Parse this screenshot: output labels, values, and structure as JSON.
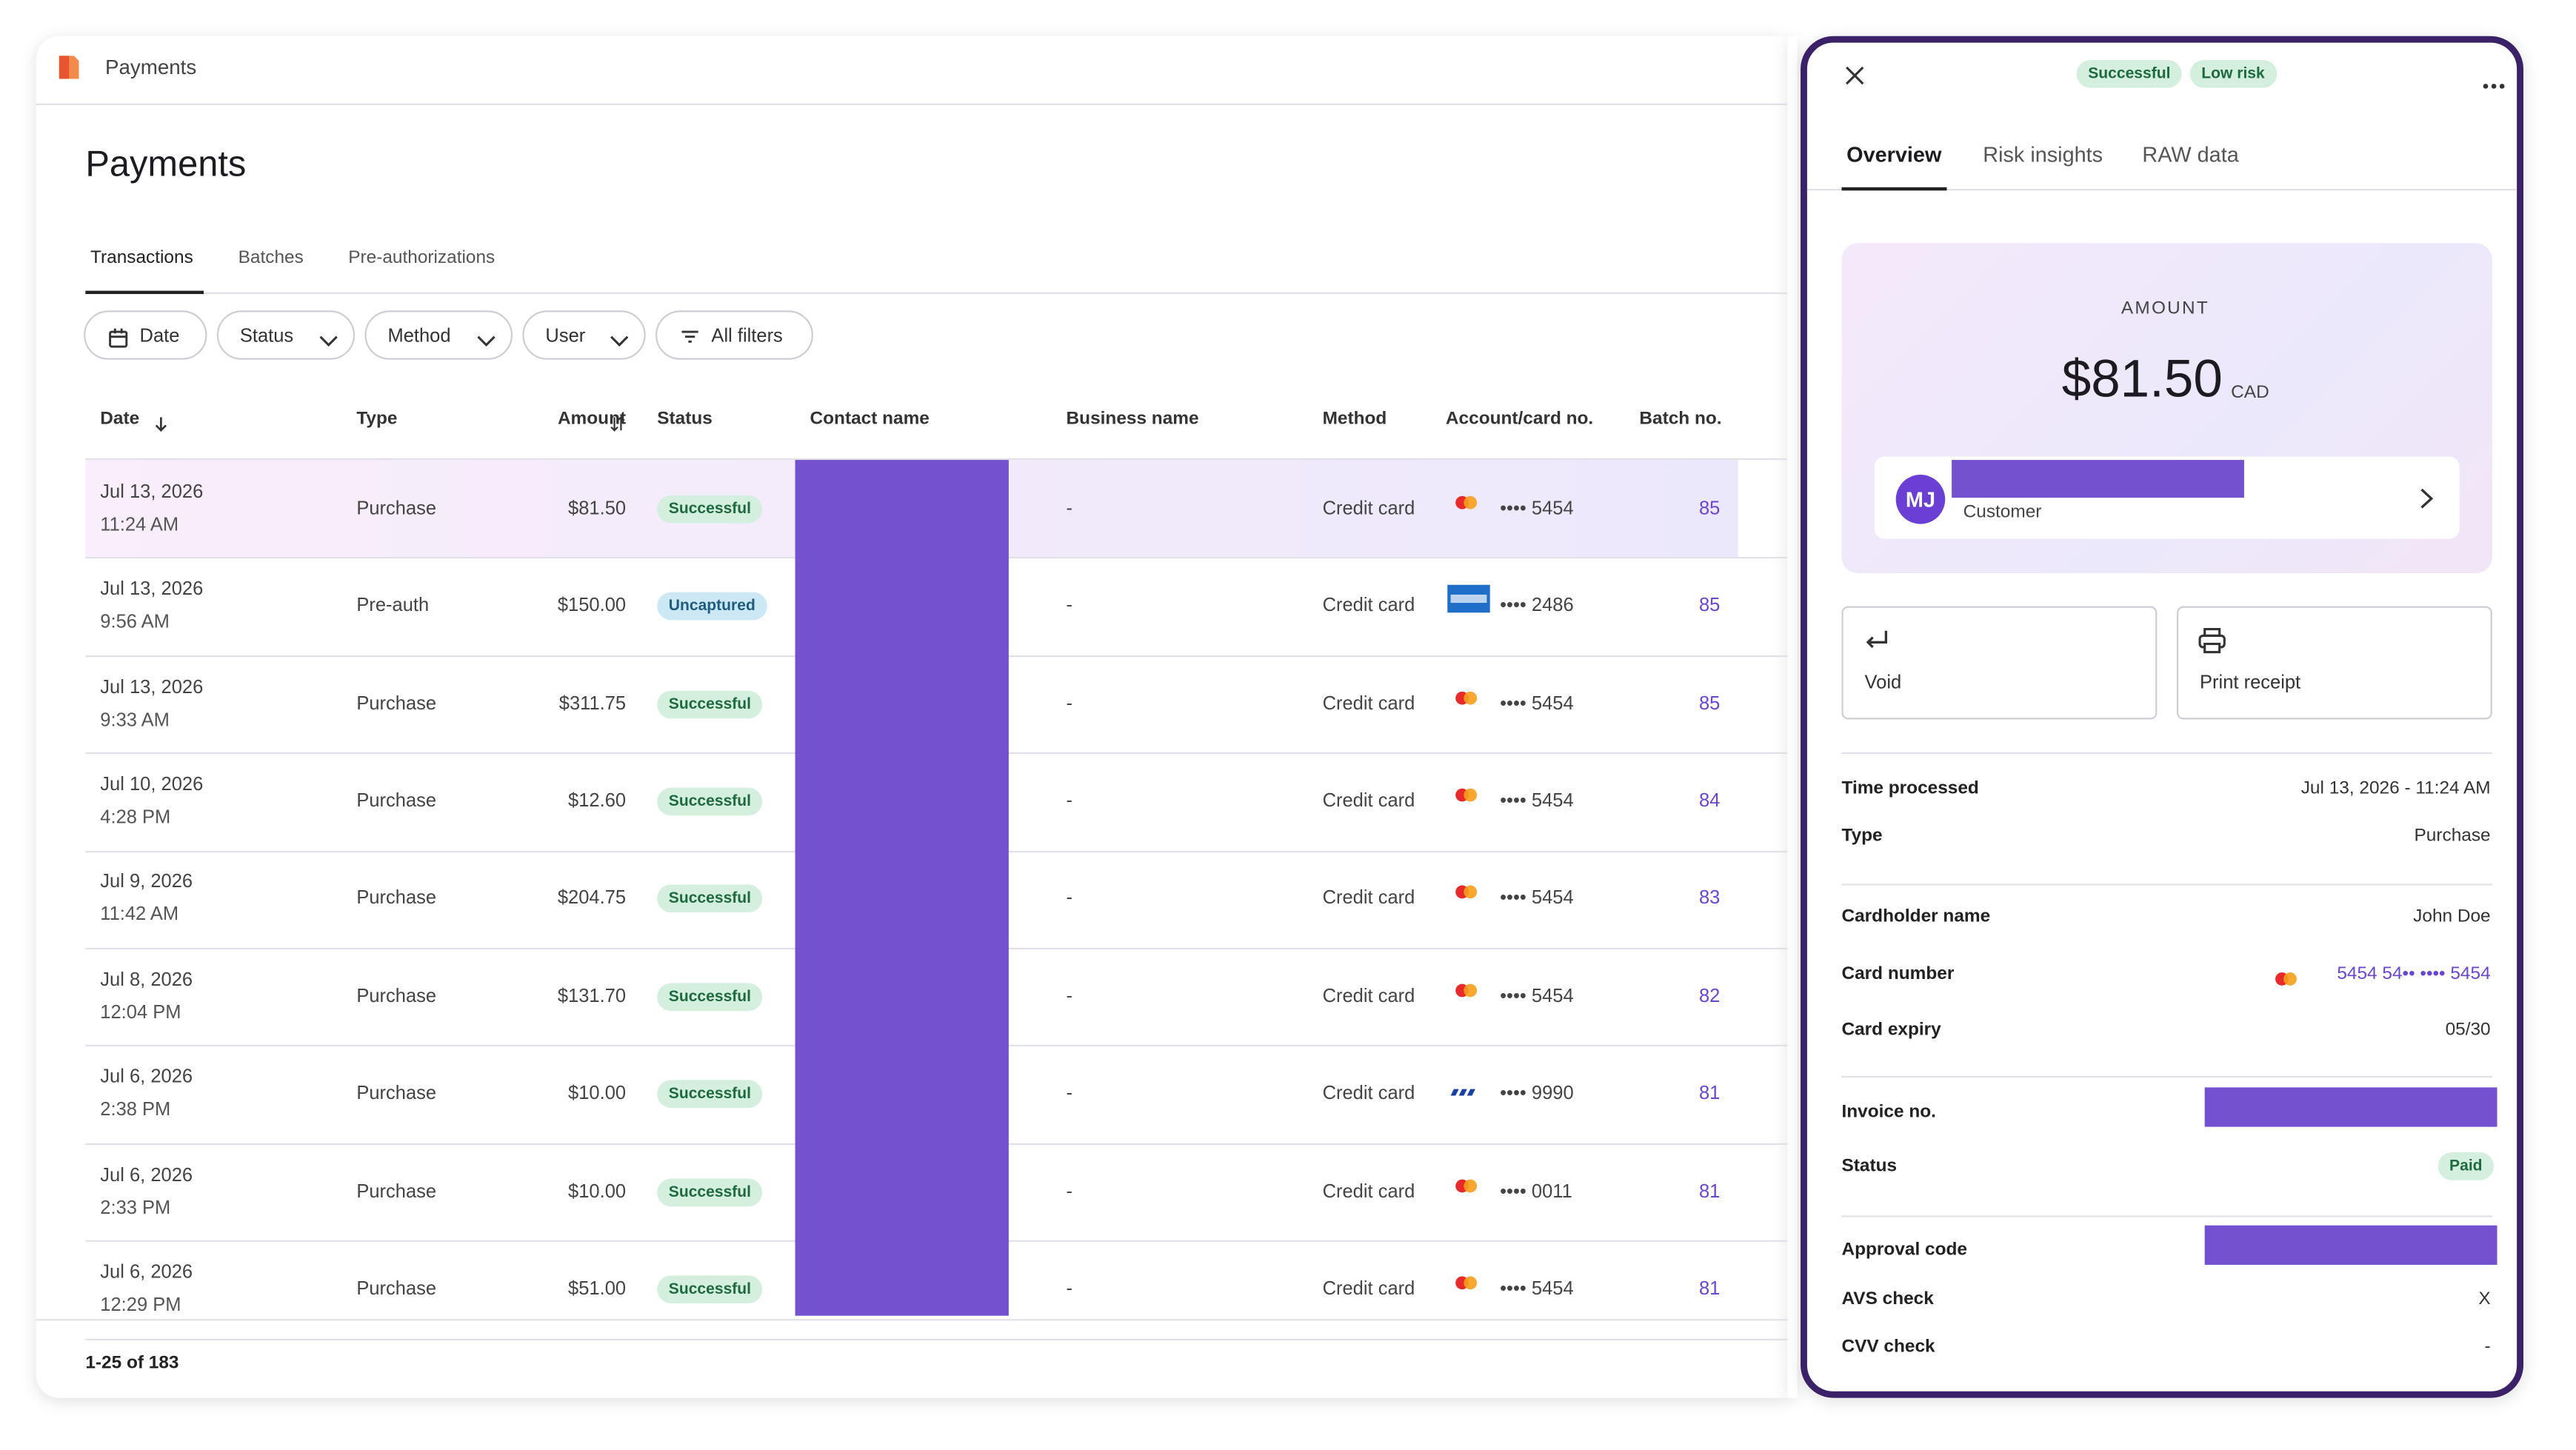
{
  "app": {
    "title": "Payments"
  },
  "page": {
    "heading": "Payments",
    "tabs": [
      "Transactions",
      "Batches",
      "Pre-authorizations"
    ],
    "filters": [
      "Date",
      "Status",
      "Method",
      "User",
      "All filters"
    ]
  },
  "table": {
    "columns": [
      "Date",
      "Type",
      "Amount",
      "Status",
      "Contact name",
      "Business name",
      "Method",
      "Account/card no.",
      "Batch no."
    ],
    "rows": [
      {
        "date": "Jul 13, 2026",
        "time": "11:24 AM",
        "type": "Purchase",
        "amount": "$81.50",
        "status": "Successful",
        "business": "-",
        "method": "Credit card",
        "card_brand": "mastercard",
        "card": "•••• 5454",
        "batch": "85"
      },
      {
        "date": "Jul 13, 2026",
        "time": "9:56 AM",
        "type": "Pre-auth",
        "amount": "$150.00",
        "status": "Uncaptured",
        "business": "-",
        "method": "Credit card",
        "card_brand": "amex",
        "card": "•••• 2486",
        "batch": "85"
      },
      {
        "date": "Jul 13, 2026",
        "time": "9:33 AM",
        "type": "Purchase",
        "amount": "$311.75",
        "status": "Successful",
        "business": "-",
        "method": "Credit card",
        "card_brand": "mastercard",
        "card": "•••• 5454",
        "batch": "85"
      },
      {
        "date": "Jul 10, 2026",
        "time": "4:28 PM",
        "type": "Purchase",
        "amount": "$12.60",
        "status": "Successful",
        "business": "-",
        "method": "Credit card",
        "card_brand": "mastercard",
        "card": "•••• 5454",
        "batch": "84"
      },
      {
        "date": "Jul 9, 2026",
        "time": "11:42 AM",
        "type": "Purchase",
        "amount": "$204.75",
        "status": "Successful",
        "business": "-",
        "method": "Credit card",
        "card_brand": "mastercard",
        "card": "•••• 5454",
        "batch": "83"
      },
      {
        "date": "Jul 8, 2026",
        "time": "12:04 PM",
        "type": "Purchase",
        "amount": "$131.70",
        "status": "Successful",
        "business": "-",
        "method": "Credit card",
        "card_brand": "mastercard",
        "card": "•••• 5454",
        "batch": "82"
      },
      {
        "date": "Jul 6, 2026",
        "time": "2:38 PM",
        "type": "Purchase",
        "amount": "$10.00",
        "status": "Successful",
        "business": "-",
        "method": "Credit card",
        "card_brand": "visa",
        "card": "•••• 9990",
        "batch": "81"
      },
      {
        "date": "Jul 6, 2026",
        "time": "2:33 PM",
        "type": "Purchase",
        "amount": "$10.00",
        "status": "Successful",
        "business": "-",
        "method": "Credit card",
        "card_brand": "mastercard",
        "card": "•••• 0011",
        "batch": "81"
      },
      {
        "date": "Jul 6, 2026",
        "time": "12:29 PM",
        "type": "Purchase",
        "amount": "$51.00",
        "status": "Successful",
        "business": "-",
        "method": "Credit card",
        "card_brand": "mastercard",
        "card": "•••• 5454",
        "batch": "81"
      }
    ]
  },
  "pagination": "1-25 of 183",
  "panel": {
    "badges": [
      "Successful",
      "Low risk"
    ],
    "tabs": [
      "Overview",
      "Risk insights",
      "RAW data"
    ],
    "amount_label": "AMOUNT",
    "amount": "$81.50",
    "currency": "CAD",
    "customer_initials": "MJ",
    "customer_label": "Customer",
    "actions": [
      "Void",
      "Print receipt"
    ],
    "details": [
      [
        {
          "label": "Time processed",
          "value": "Jul 13, 2026 - 11:24 AM"
        },
        {
          "label": "Type",
          "value": "Purchase"
        }
      ],
      [
        {
          "label": "Cardholder name",
          "value": "John Doe"
        },
        {
          "label": "Card number",
          "value": "5454 54•• •••• 5454"
        },
        {
          "label": "Card expiry",
          "value": "05/30"
        }
      ],
      [
        {
          "label": "Invoice no."
        },
        {
          "label": "Status",
          "value": "Paid"
        }
      ],
      [
        {
          "label": "Approval code"
        },
        {
          "label": "AVS check",
          "value": "X"
        },
        {
          "label": "CVV check",
          "value": "-"
        }
      ]
    ]
  }
}
